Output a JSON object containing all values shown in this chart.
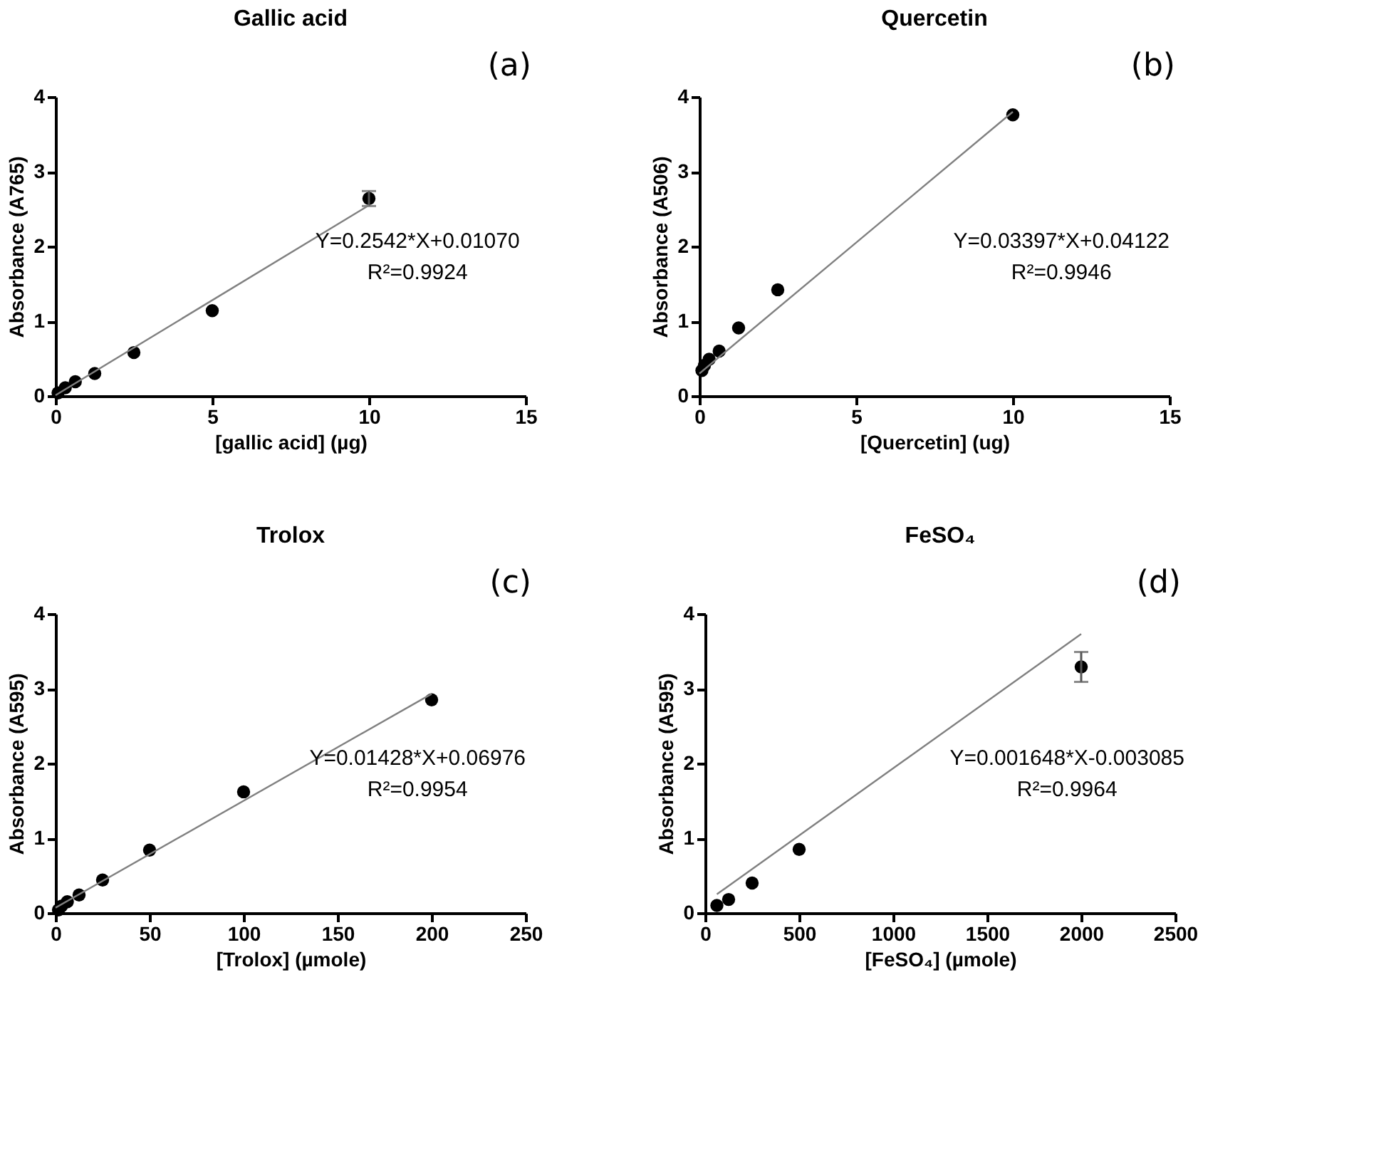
{
  "chart_data": [
    {
      "type": "scatter",
      "title": "Gallic acid",
      "xlabel": "[gallic acid] (µg)",
      "ylabel": "Absorbance (A765)",
      "xlim": [
        0,
        15
      ],
      "xticks": [
        0,
        5,
        10,
        15
      ],
      "ylim": [
        0,
        4
      ],
      "yticks": [
        0,
        1,
        2,
        3,
        4
      ],
      "grid": false,
      "annotations": [
        "(a)",
        "Y=0.2542*X+0.01070",
        "R²=0.9924"
      ],
      "series": [
        {
          "marker": "circle",
          "color": "#000000",
          "x": [
            0.08,
            0.16,
            0.31,
            0.63,
            1.25,
            2.5,
            5,
            10
          ],
          "values": [
            0.04,
            null,
            0.11,
            0.19,
            0.3,
            0.58,
            1.14,
            2.64
          ],
          "errors": [
            null,
            null,
            null,
            null,
            null,
            null,
            null,
            0.1
          ]
        },
        {
          "type": "line",
          "color": "#808080",
          "x": [
            0,
            10
          ],
          "values": [
            0.01,
            2.55
          ]
        }
      ]
    },
    {
      "type": "scatter",
      "title": "Quercetin",
      "xlabel": "[Quercetin] (ug)",
      "ylabel": "Absorbance (A506)",
      "xlim": [
        0,
        15
      ],
      "xticks": [
        0,
        5,
        10,
        15
      ],
      "ylim": [
        0,
        4
      ],
      "yticks": [
        0,
        1,
        2,
        3,
        4
      ],
      "grid": false,
      "annotations": [
        "(b)",
        "Y=0.03397*X+0.04122",
        "R²=0.9946"
      ],
      "series": [
        {
          "marker": "circle",
          "color": "#000000",
          "x": [
            0.08,
            0.16,
            0.31,
            0.63,
            1.25,
            2.5,
            10
          ],
          "values": [
            0.34,
            0.41,
            0.49,
            0.6,
            0.91,
            1.42,
            3.76
          ]
        },
        {
          "type": "line",
          "color": "#808080",
          "x": [
            0,
            10
          ],
          "values": [
            0.3,
            3.8
          ]
        }
      ]
    },
    {
      "type": "scatter",
      "title": "Trolox",
      "xlabel": "[Trolox] (µmole)",
      "ylabel": "Absorbance (A595)",
      "xlim": [
        0,
        250
      ],
      "xticks": [
        0,
        50,
        100,
        150,
        200,
        250
      ],
      "ylim": [
        0,
        4
      ],
      "yticks": [
        0,
        1,
        2,
        3,
        4
      ],
      "grid": false,
      "annotations": [
        "(c)",
        "Y=0.01428*X+0.06976",
        "R²=0.9954"
      ],
      "series": [
        {
          "marker": "circle",
          "color": "#000000",
          "x": [
            1.56,
            3.13,
            6.25,
            12.5,
            25,
            50,
            100,
            200
          ],
          "values": [
            0.04,
            0.09,
            0.15,
            0.24,
            0.44,
            0.84,
            1.62,
            2.85
          ]
        },
        {
          "type": "line",
          "color": "#808080",
          "x": [
            0,
            200
          ],
          "values": [
            0.07,
            2.93
          ]
        }
      ]
    },
    {
      "type": "scatter",
      "title": "FeSO₄",
      "xlabel": "[FeSO₄] (µmole)",
      "ylabel": "Absorbance (A595)",
      "xlim": [
        0,
        2500
      ],
      "xticks": [
        0,
        500,
        1000,
        1500,
        2000,
        2500
      ],
      "ylim": [
        0,
        4
      ],
      "yticks": [
        0,
        1,
        2,
        3,
        4
      ],
      "grid": false,
      "annotations": [
        "(d)",
        "Y=0.001648*X-0.003085",
        "R²=0.9964"
      ],
      "series": [
        {
          "marker": "circle",
          "color": "#000000",
          "x": [
            62.5,
            125,
            250,
            500,
            2000
          ],
          "values": [
            0.1,
            0.18,
            0.4,
            0.85,
            3.29
          ],
          "errors": [
            null,
            null,
            null,
            null,
            0.2
          ]
        },
        {
          "type": "line",
          "color": "#808080",
          "x": [
            62.5,
            2000
          ],
          "values": [
            0.25,
            3.73
          ]
        }
      ]
    }
  ]
}
